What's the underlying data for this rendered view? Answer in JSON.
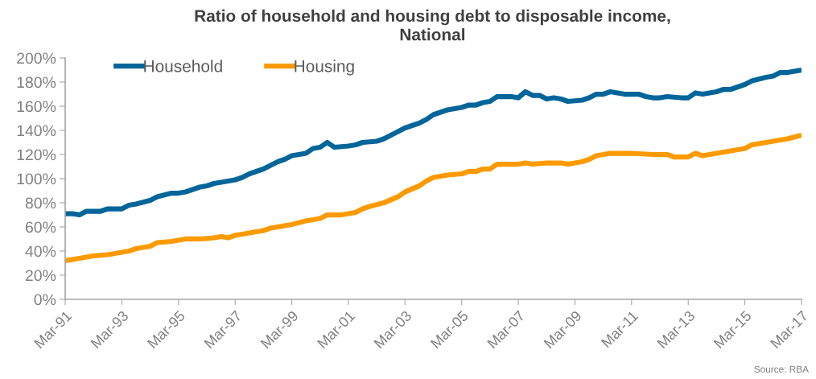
{
  "chart_data": {
    "type": "line",
    "title": "Ratio of household and housing debt to disposable income,\nNational",
    "annotations": [
      "Source: RBA"
    ],
    "xlim": [
      "1991-03",
      "2017-03"
    ],
    "xticks": [
      {
        "value": "1991-03",
        "label": "Mar-91"
      },
      {
        "value": "1993-03",
        "label": "Mar-93"
      },
      {
        "value": "1995-03",
        "label": "Mar-95"
      },
      {
        "value": "1997-03",
        "label": "Mar-97"
      },
      {
        "value": "1999-03",
        "label": "Mar-99"
      },
      {
        "value": "2001-03",
        "label": "Mar-01"
      },
      {
        "value": "2003-03",
        "label": "Mar-03"
      },
      {
        "value": "2005-03",
        "label": "Mar-05"
      },
      {
        "value": "2007-03",
        "label": "Mar-07"
      },
      {
        "value": "2009-03",
        "label": "Mar-09"
      },
      {
        "value": "2011-03",
        "label": "Mar-11"
      },
      {
        "value": "2013-03",
        "label": "Mar-13"
      },
      {
        "value": "2015-03",
        "label": "Mar-15"
      },
      {
        "value": "2017-03",
        "label": "Mar-17"
      }
    ],
    "ylim": [
      0,
      200
    ],
    "yticks": [
      {
        "value": 0,
        "label": "0%"
      },
      {
        "value": 20,
        "label": "20%"
      },
      {
        "value": 40,
        "label": "40%"
      },
      {
        "value": 60,
        "label": "60%"
      },
      {
        "value": 80,
        "label": "80%"
      },
      {
        "value": 100,
        "label": "100%"
      },
      {
        "value": 120,
        "label": "120%"
      },
      {
        "value": 140,
        "label": "140%"
      },
      {
        "value": 160,
        "label": "160%"
      },
      {
        "value": 180,
        "label": "180%"
      },
      {
        "value": 200,
        "label": "200%"
      }
    ],
    "legend": "top left",
    "marker": "none",
    "line_style": "solid",
    "series": [
      {
        "name": "Household",
        "color": "#02659a",
        "x": [
          "1991-03",
          "1991-06",
          "1991-09",
          "1991-12",
          "1992-03",
          "1992-06",
          "1992-09",
          "1993-03",
          "1993-06",
          "1993-09",
          "1994-03",
          "1994-06",
          "1994-12",
          "1995-03",
          "1995-06",
          "1995-09",
          "1995-12",
          "1996-03",
          "1996-06",
          "1996-09",
          "1997-03",
          "1997-06",
          "1997-09",
          "1997-12",
          "1998-03",
          "1998-06",
          "1998-09",
          "1998-12",
          "1999-03",
          "1999-09",
          "1999-12",
          "2000-03",
          "2000-06",
          "2000-09",
          "2001-03",
          "2001-06",
          "2001-09",
          "2002-03",
          "2002-06",
          "2002-09",
          "2002-12",
          "2003-03",
          "2003-09",
          "2003-12",
          "2004-03",
          "2004-09",
          "2005-03",
          "2005-06",
          "2005-09",
          "2005-12",
          "2006-03",
          "2006-06",
          "2006-12",
          "2007-03",
          "2007-06",
          "2007-09",
          "2007-12",
          "2008-03",
          "2008-06",
          "2008-09",
          "2008-12",
          "2009-06",
          "2009-09",
          "2009-12",
          "2010-03",
          "2010-06",
          "2010-09",
          "2010-12",
          "2011-06",
          "2011-09",
          "2011-12",
          "2012-03",
          "2012-06",
          "2012-12",
          "2013-03",
          "2013-06",
          "2013-09",
          "2014-03",
          "2014-06",
          "2014-09",
          "2015-03",
          "2015-06",
          "2015-12",
          "2016-03",
          "2016-06",
          "2016-09",
          "2017-03"
        ],
        "values": [
          71,
          71,
          70,
          73,
          73,
          73,
          75,
          75,
          78,
          79,
          82,
          85,
          88,
          88,
          89,
          91,
          93,
          94,
          96,
          97,
          99,
          101,
          104,
          106,
          108,
          111,
          114,
          116,
          119,
          121,
          125,
          126,
          130,
          126,
          127,
          128,
          130,
          131,
          133,
          136,
          139,
          142,
          146,
          149,
          153,
          157,
          159,
          161,
          161,
          163,
          164,
          168,
          168,
          167,
          172,
          169,
          169,
          166,
          167,
          166,
          164,
          165,
          167,
          170,
          170,
          172,
          171,
          170,
          170,
          168,
          167,
          167,
          168,
          167,
          167,
          171,
          170,
          172,
          174,
          174,
          178,
          181,
          184,
          185,
          188,
          188,
          190
        ]
      },
      {
        "name": "Housing",
        "color": "#fd9a00",
        "x": [
          "1991-03",
          "1991-06",
          "1991-12",
          "1992-03",
          "1992-09",
          "1993-03",
          "1993-06",
          "1993-09",
          "1994-03",
          "1994-06",
          "1994-12",
          "1995-06",
          "1995-12",
          "1996-06",
          "1996-09",
          "1996-12",
          "1997-03",
          "1997-09",
          "1998-03",
          "1998-06",
          "1998-09",
          "1999-03",
          "1999-09",
          "2000-03",
          "2000-06",
          "2000-12",
          "2001-06",
          "2001-09",
          "2001-12",
          "2002-06",
          "2002-12",
          "2003-03",
          "2003-09",
          "2003-12",
          "2004-03",
          "2004-09",
          "2005-03",
          "2005-06",
          "2005-09",
          "2005-12",
          "2006-03",
          "2006-06",
          "2007-03",
          "2007-06",
          "2007-09",
          "2008-03",
          "2008-09",
          "2008-12",
          "2009-06",
          "2009-09",
          "2009-12",
          "2010-06",
          "2011-03",
          "2011-12",
          "2012-06",
          "2012-09",
          "2013-03",
          "2013-06",
          "2013-09",
          "2014-03",
          "2014-09",
          "2015-03",
          "2015-06",
          "2015-12",
          "2016-03",
          "2016-09",
          "2017-03"
        ],
        "values": [
          32,
          33,
          35,
          36,
          37,
          39,
          40,
          42,
          44,
          47,
          48,
          50,
          50,
          51,
          52,
          51,
          53,
          55,
          57,
          59,
          60,
          62,
          65,
          67,
          70,
          70,
          72,
          75,
          77,
          80,
          85,
          89,
          94,
          98,
          101,
          103,
          104,
          106,
          106,
          108,
          108,
          112,
          112,
          113,
          112,
          113,
          113,
          112,
          114,
          116,
          119,
          121,
          121,
          120,
          120,
          118,
          118,
          121,
          119,
          121,
          123,
          125,
          128,
          130,
          131,
          133,
          136
        ]
      }
    ]
  }
}
